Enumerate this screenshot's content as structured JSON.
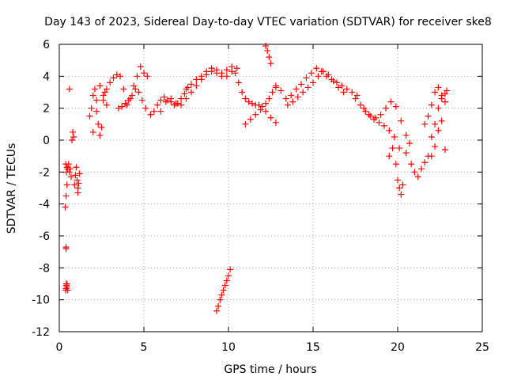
{
  "chart_data": {
    "type": "scatter",
    "title": "Day 143 of 2023, Sidereal Day-to-day VTEC variation (SDTVAR) for receiver ske8",
    "xlabel": "GPS time / hours",
    "ylabel": "SDTVAR / TECUs",
    "xlim": [
      0,
      25
    ],
    "ylim": [
      -12,
      6
    ],
    "xticks": [
      0,
      5,
      10,
      15,
      20,
      25
    ],
    "yticks": [
      -12,
      -10,
      -8,
      -6,
      -4,
      -2,
      0,
      2,
      4,
      6
    ],
    "grid": true,
    "marker": "+",
    "color": "#ff0000",
    "series": [
      {
        "name": "SDTVAR",
        "x": [
          0.35,
          0.4,
          0.45,
          0.42,
          0.38,
          0.45,
          0.5,
          0.55,
          0.6,
          0.4,
          0.42,
          0.45,
          0.5,
          0.6,
          0.65,
          0.7,
          0.75,
          0.8,
          0.85,
          0.9,
          0.95,
          1.0,
          1.05,
          1.1,
          1.15,
          1.2,
          1.1,
          0.38,
          0.4,
          0.42,
          0.45,
          0.4,
          1.8,
          1.9,
          2.0,
          2.1,
          2.2,
          2.3,
          2.4,
          2.5,
          2.6,
          2.7,
          2.8,
          2.0,
          2.2,
          2.4,
          2.6,
          2.8,
          3.0,
          3.2,
          3.4,
          3.6,
          3.8,
          4.0,
          4.2,
          4.4,
          4.6,
          4.8,
          5.0,
          5.2,
          3.5,
          3.7,
          3.9,
          4.1,
          4.3,
          4.5,
          4.7,
          4.9,
          5.1,
          5.4,
          5.6,
          5.8,
          6.0,
          6.2,
          6.4,
          6.6,
          6.8,
          7.0,
          7.2,
          7.4,
          7.6,
          6.0,
          6.3,
          6.6,
          6.9,
          7.2,
          7.5,
          7.8,
          8.1,
          8.4,
          8.7,
          9.0,
          9.3,
          9.6,
          9.9,
          10.2,
          10.5,
          7.5,
          7.8,
          8.1,
          8.4,
          8.7,
          9.0,
          9.3,
          9.6,
          9.9,
          10.2,
          10.4,
          10.6,
          10.8,
          11.0,
          11.2,
          11.4,
          11.6,
          11.8,
          12.0,
          12.2,
          12.4,
          12.6,
          12.8,
          11.0,
          11.3,
          11.6,
          11.9,
          12.2,
          12.5,
          12.8,
          12.2,
          12.3,
          12.4,
          12.5,
          12.8,
          13.1,
          13.4,
          13.7,
          14.0,
          14.3,
          14.6,
          14.9,
          15.2,
          15.5,
          15.8,
          16.1,
          16.4,
          16.7,
          17.0,
          17.3,
          17.6,
          13.5,
          13.8,
          14.1,
          14.4,
          14.7,
          15.0,
          15.3,
          15.6,
          15.9,
          16.2,
          16.5,
          16.8,
          17.5,
          17.8,
          18.1,
          18.4,
          18.7,
          19.0,
          19.3,
          19.6,
          19.9,
          20.2,
          20.5,
          18.0,
          18.3,
          18.6,
          18.9,
          19.2,
          19.5,
          19.8,
          20.1,
          19.5,
          19.7,
          19.9,
          20.0,
          20.1,
          20.2,
          20.3,
          20.5,
          20.7,
          20.8,
          21.0,
          21.2,
          21.4,
          21.6,
          21.8,
          22.0,
          22.2,
          22.4,
          22.6,
          22.8,
          21.6,
          21.8,
          22.0,
          22.2,
          22.4,
          22.6,
          22.8,
          22.9,
          22.0,
          22.2,
          22.4,
          22.6,
          22.8,
          9.3,
          9.4,
          9.5,
          9.6,
          9.7,
          9.8,
          9.9,
          10.0,
          10.1
        ],
        "y": [
          -4.2,
          -3.5,
          -2.8,
          -2.0,
          -1.5,
          -1.7,
          -1.8,
          -1.5,
          -2.0,
          -6.7,
          -9.0,
          -9.2,
          -9.4,
          3.2,
          -1.8,
          -2.3,
          0.0,
          0.5,
          0.2,
          -2.8,
          -2.2,
          -1.7,
          -2.5,
          -3.3,
          -2.7,
          -2.1,
          -3.0,
          -9.4,
          -9.3,
          -9.1,
          -9.0,
          -6.8,
          1.5,
          2.0,
          2.8,
          3.2,
          2.5,
          1.0,
          0.3,
          0.8,
          2.5,
          3.0,
          2.2,
          0.5,
          1.8,
          3.4,
          2.8,
          3.2,
          3.6,
          3.9,
          4.1,
          4.0,
          3.2,
          2.2,
          2.6,
          3.4,
          4.0,
          4.6,
          4.2,
          4.0,
          2.0,
          2.1,
          2.3,
          2.5,
          2.8,
          3.2,
          3.0,
          2.5,
          2.0,
          1.6,
          1.8,
          2.2,
          2.5,
          2.7,
          2.5,
          2.4,
          2.2,
          2.3,
          2.6,
          2.9,
          3.3,
          1.8,
          2.4,
          2.6,
          2.3,
          2.2,
          2.6,
          3.0,
          3.4,
          3.8,
          4.1,
          4.3,
          4.4,
          4.2,
          4.0,
          4.3,
          4.5,
          3.2,
          3.5,
          3.8,
          4.0,
          4.3,
          4.5,
          4.2,
          4.0,
          4.4,
          4.6,
          4.2,
          3.6,
          3.0,
          2.6,
          2.4,
          2.3,
          2.2,
          2.2,
          2.1,
          2.3,
          2.6,
          3.0,
          3.3,
          1.0,
          1.3,
          1.6,
          1.9,
          1.8,
          1.4,
          1.1,
          5.9,
          5.6,
          5.2,
          4.8,
          3.4,
          3.1,
          2.6,
          2.8,
          3.2,
          3.5,
          3.9,
          4.2,
          4.5,
          4.3,
          4.0,
          3.8,
          3.6,
          3.4,
          3.2,
          3.0,
          2.8,
          2.2,
          2.4,
          2.7,
          3.0,
          3.3,
          3.6,
          4.0,
          4.3,
          4.1,
          3.7,
          3.3,
          3.0,
          2.6,
          2.2,
          1.8,
          1.5,
          1.4,
          1.6,
          2.0,
          2.4,
          2.1,
          1.2,
          0.3,
          2.0,
          1.6,
          1.3,
          1.1,
          0.9,
          0.6,
          0.2,
          -0.5,
          -1.0,
          -0.5,
          -1.5,
          -2.5,
          -3.0,
          -3.4,
          -2.8,
          -0.8,
          -0.2,
          -1.5,
          -2.0,
          -2.3,
          -1.8,
          -1.4,
          -1.0,
          0.2,
          1.0,
          2.0,
          2.6,
          2.9,
          1.0,
          1.5,
          2.2,
          3.0,
          3.3,
          2.8,
          2.4,
          3.1,
          -1.0,
          -0.4,
          0.6,
          1.2,
          -0.6,
          -10.7,
          -10.4,
          -10.0,
          -9.7,
          -9.4,
          -9.1,
          -8.8,
          -8.5,
          -8.1
        ]
      }
    ]
  }
}
